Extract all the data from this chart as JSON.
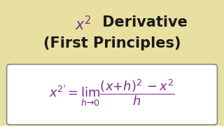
{
  "background_color": "#e8e0a0",
  "title_color": "#1a1a1a",
  "title_x_color": "#7b2d8b",
  "formula_color": "#7b2d8b",
  "box_color": "#ffffff",
  "box_edge_color": "#888888",
  "title_fontsize": 15,
  "formula_fontsize": 13
}
